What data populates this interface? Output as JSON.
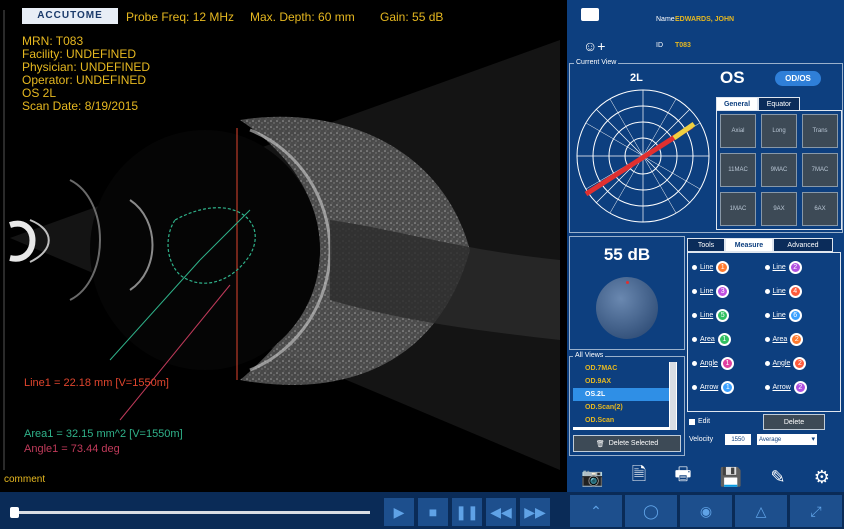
{
  "header": {
    "logo": "ACCUTOME",
    "probe_freq": "Probe Freq: 12 MHz",
    "max_depth": "Max. Depth: 60 mm",
    "gain": "Gain: 55 dB"
  },
  "patient_overlay": [
    "MRN: T083",
    "Facility: UNDEFINED",
    "Physician: UNDEFINED",
    "Operator: UNDEFINED",
    "OS  2L",
    "Scan Date: 8/19/2015"
  ],
  "measurements": {
    "line1": "Line1 = 22.18 mm   [V=1550m]",
    "area1": "Area1 = 32.15 mm^2 [V=1550m]",
    "angle1": "Angle1 = 73.44 deg"
  },
  "comment": "comment",
  "patient": {
    "name_label": "Name",
    "name_value": "EDWARDS, JOHN",
    "id_label": "ID",
    "id_value": "T083"
  },
  "current_view": {
    "title": "Current View",
    "position": "2L",
    "eye": "OS",
    "toggle": "OD/OS",
    "tabs": [
      "General",
      "Equator"
    ],
    "views": [
      "Axial",
      "Long",
      "Trans",
      "11MAC",
      "9MAC",
      "7MAC",
      "1MAC",
      "9AX",
      "6AX"
    ]
  },
  "gain_panel": {
    "value": "55 dB"
  },
  "tool_tabs": [
    "Tools",
    "Measure",
    "Advanced"
  ],
  "measure_tools": [
    {
      "label": "Line",
      "num": "1",
      "color": "#ff7a2e"
    },
    {
      "label": "Line",
      "num": "2",
      "color": "#b050e0"
    },
    {
      "label": "Line",
      "num": "3",
      "color": "#c050e0"
    },
    {
      "label": "Line",
      "num": "4",
      "color": "#ff5a3a"
    },
    {
      "label": "Line",
      "num": "5",
      "color": "#30c060"
    },
    {
      "label": "Line",
      "num": "6",
      "color": "#3aa0ff"
    },
    {
      "label": "Area",
      "num": "1",
      "color": "#30c060"
    },
    {
      "label": "Area",
      "num": "2",
      "color": "#ff7a2e"
    },
    {
      "label": "Angle",
      "num": "1",
      "color": "#e040a0"
    },
    {
      "label": "Angle",
      "num": "2",
      "color": "#ff5a3a"
    },
    {
      "label": "Arrow",
      "num": "1",
      "color": "#3aa0ff"
    },
    {
      "label": "Arrow",
      "num": "2",
      "color": "#b050e0"
    }
  ],
  "edit_label": "Edit",
  "delete_label": "Delete",
  "velocity_label": "Velocity",
  "velocity_value": "1550",
  "velocity_option": "Average",
  "all_views": {
    "title": "All Views",
    "items": [
      "OD.7MAC",
      "OD.9AX",
      "OS.2L",
      "OD.Scan(2)",
      "OD.Scan"
    ],
    "delete_selected": "Delete Selected"
  },
  "colors": {
    "overlay_text": "#e6b820",
    "panel_bg": "#0d3f7f",
    "accent": "#2f7fd8",
    "line_measure": "#e0452e",
    "area_measure": "#2fb28a",
    "angle_measure": "#c03a5a"
  },
  "icons": [
    "camera-icon",
    "document-icon",
    "print-icon",
    "save-icon",
    "pen-icon",
    "gear-icon",
    "folder-icon",
    "add-user-icon"
  ]
}
